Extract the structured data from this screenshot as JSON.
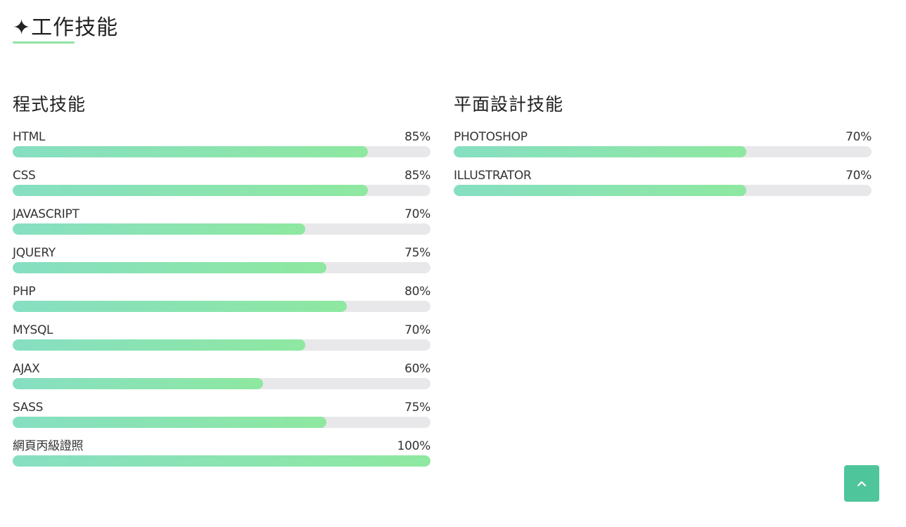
{
  "page": {
    "title": "✦工作技能",
    "accent_color": "#8ee4a4"
  },
  "programming": {
    "title": "程式技能",
    "skills": [
      {
        "name": "HTML",
        "percent_label": "85%",
        "percent": 85
      },
      {
        "name": "CSS",
        "percent_label": "85%",
        "percent": 85
      },
      {
        "name": "JAVASCRIPT",
        "percent_label": "70%",
        "percent": 70
      },
      {
        "name": "JQUERY",
        "percent_label": "75%",
        "percent": 75
      },
      {
        "name": "PHP",
        "percent_label": "80%",
        "percent": 80
      },
      {
        "name": "MYSQL",
        "percent_label": "70%",
        "percent": 70
      },
      {
        "name": "AJAX",
        "percent_label": "60%",
        "percent": 60
      },
      {
        "name": "SASS",
        "percent_label": "75%",
        "percent": 75
      },
      {
        "name": "網頁丙級證照",
        "percent_label": "100%",
        "percent": 100
      }
    ]
  },
  "design": {
    "title": "平面設計技能",
    "skills": [
      {
        "name": "PHOTOSHOP",
        "percent_label": "70%",
        "percent": 70
      },
      {
        "name": "ILLUSTRATOR",
        "percent_label": "70%",
        "percent": 70
      }
    ]
  },
  "back_to_top": {
    "icon": "chevron-up-icon",
    "color": "#4ec59a"
  }
}
